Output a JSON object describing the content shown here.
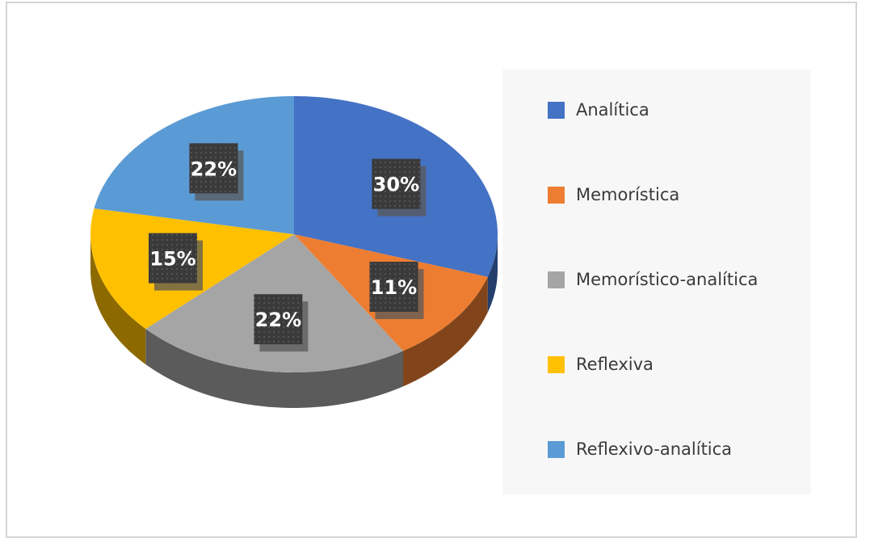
{
  "chart_data": {
    "type": "pie",
    "style": "3d",
    "categories": [
      "Analítica",
      "Memorística",
      "Memorístico-analítica",
      "Reflexiva",
      "Reflexivo-analítica"
    ],
    "values": [
      30,
      11,
      22,
      15,
      22
    ],
    "value_labels": [
      "30%",
      "11%",
      "22%",
      "15%",
      "22%"
    ],
    "colors": [
      "#4472c4",
      "#ed7d31",
      "#a5a5a5",
      "#ffc000",
      "#5b9bd5"
    ],
    "legend_position": "right"
  }
}
